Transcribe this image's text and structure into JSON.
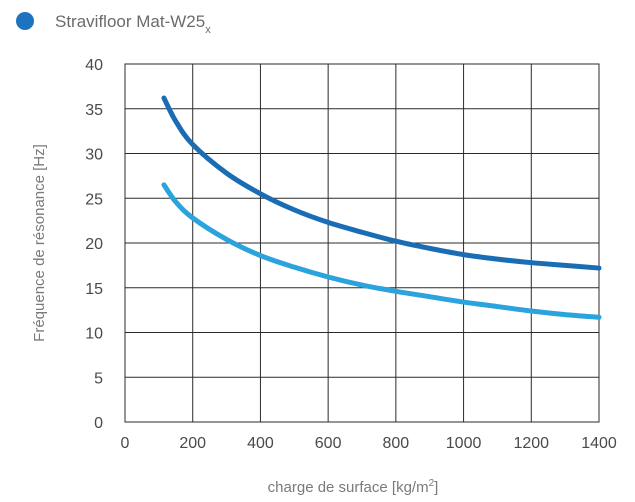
{
  "legend": {
    "label": "Stravifloor Mat-W25",
    "subscript": "x",
    "color": "#1e73be"
  },
  "chart_data": {
    "type": "line",
    "title": "",
    "xlabel": "charge de surface [kg/m",
    "xlabel_sup": "2",
    "xlabel_end": "]",
    "ylabel": "Fréquence de résonance [Hz]",
    "xlim": [
      0,
      1400
    ],
    "ylim": [
      0,
      40
    ],
    "x_ticks": [
      0,
      200,
      400,
      600,
      800,
      1000,
      1200,
      1400
    ],
    "y_ticks": [
      0,
      5,
      10,
      15,
      20,
      25,
      30,
      35,
      40
    ],
    "grid": true,
    "series": [
      {
        "color": "#1a6db5",
        "points": [
          [
            115,
            36.2
          ],
          [
            150,
            33.6
          ],
          [
            200,
            31.0
          ],
          [
            300,
            27.8
          ],
          [
            400,
            25.5
          ],
          [
            500,
            23.7
          ],
          [
            600,
            22.3
          ],
          [
            700,
            21.2
          ],
          [
            800,
            20.2
          ],
          [
            900,
            19.4
          ],
          [
            1000,
            18.7
          ],
          [
            1100,
            18.2
          ],
          [
            1200,
            17.8
          ],
          [
            1300,
            17.5
          ],
          [
            1400,
            17.2
          ]
        ]
      },
      {
        "color": "#2ba3dc",
        "points": [
          [
            115,
            26.5
          ],
          [
            150,
            24.6
          ],
          [
            200,
            22.8
          ],
          [
            300,
            20.4
          ],
          [
            400,
            18.6
          ],
          [
            500,
            17.3
          ],
          [
            600,
            16.2
          ],
          [
            700,
            15.3
          ],
          [
            800,
            14.6
          ],
          [
            900,
            14.0
          ],
          [
            1000,
            13.4
          ],
          [
            1100,
            12.9
          ],
          [
            1200,
            12.4
          ],
          [
            1300,
            12.0
          ],
          [
            1400,
            11.7
          ]
        ]
      }
    ]
  }
}
